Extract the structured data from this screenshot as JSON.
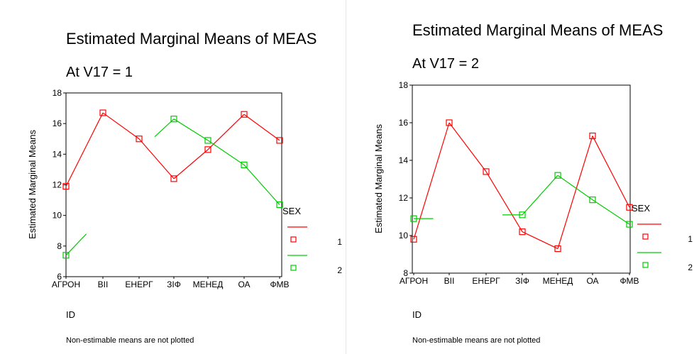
{
  "chart_data": [
    {
      "type": "line",
      "title": "Estimated Marginal Means of MEAS",
      "subtitle": "At V17 = 1",
      "xlabel": "ID",
      "ylabel": "Estimated Marginal Means",
      "categories": [
        "АГРОН",
        "ВІІ",
        "ЕНЕРГ",
        "ЗІФ",
        "МЕНЕД",
        "ОА",
        "ФМВ"
      ],
      "ylim": [
        6,
        18
      ],
      "yticks": [
        "6",
        "8",
        "10",
        "12",
        "14",
        "16",
        "18"
      ],
      "legend_title": "SEX",
      "legend_position": "right",
      "series": [
        {
          "name": "1",
          "color": "#ff0000",
          "values": [
            11.9,
            16.7,
            15.0,
            12.4,
            14.3,
            16.6,
            14.9
          ]
        },
        {
          "name": "2",
          "color": "#00cc00",
          "values": [
            7.4,
            null,
            null,
            16.3,
            14.9,
            13.3,
            10.7
          ]
        }
      ],
      "note": "Non-estimable means are not plotted"
    },
    {
      "type": "line",
      "title": "Estimated Marginal Means of MEAS",
      "subtitle": "At V17 = 2",
      "xlabel": "ID",
      "ylabel": "Estimated Marginal Means",
      "categories": [
        "АГРОН",
        "ВІІ",
        "ЕНЕРГ",
        "ЗІФ",
        "МЕНЕД",
        "ОА",
        "ФМВ"
      ],
      "ylim": [
        8,
        18
      ],
      "yticks": [
        "8",
        "10",
        "12",
        "14",
        "16",
        "18"
      ],
      "legend_title": "SEX",
      "legend_position": "right",
      "series": [
        {
          "name": "1",
          "color": "#ff0000",
          "values": [
            9.8,
            16.0,
            13.4,
            10.2,
            9.3,
            15.3,
            11.5
          ]
        },
        {
          "name": "2",
          "color": "#00cc00",
          "values": [
            10.9,
            null,
            null,
            11.1,
            13.2,
            11.9,
            10.6
          ]
        }
      ],
      "note": "Non-estimable means are not plotted"
    }
  ]
}
